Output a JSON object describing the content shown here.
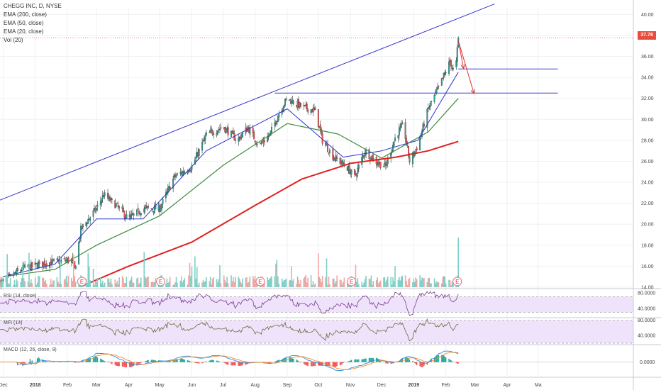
{
  "legend": {
    "symbol": "CHEGG INC, D, NYSE",
    "ema200": "EMA (200, close)",
    "ema50": "EMA (50, close)",
    "ema20": "EMA (20, close)",
    "vol": "Vol (20)"
  },
  "price_tag": "37.78",
  "earnings_marker": "E",
  "panels": {
    "rsi": "RSI (14, close)",
    "mfi": "MFI (14)",
    "macd": "MACD (12, 26, close, 9)"
  },
  "colors": {
    "up": "#26a69a",
    "down": "#ef5350",
    "ema200": "#e02020",
    "ema50": "#3c8a3c",
    "ema20": "#2832c8",
    "trendline": "#3a3ad0",
    "arrow": "#e03030",
    "rsi": "#7b3c8f",
    "mfi": "#6b6b3a",
    "macd": "#2a8fd8",
    "signal": "#f08a30",
    "band_fill": "#efe3fb"
  },
  "chart_data": [
    {
      "type": "candlestick",
      "title": "CHEGG INC, D, NYSE",
      "x_ticks": [
        "Dec",
        "2018",
        "Feb",
        "Mar",
        "Apr",
        "May",
        "Jun",
        "Jul",
        "Aug",
        "Sep",
        "Oct",
        "Nov",
        "Dec",
        "2019",
        "Feb",
        "Mar",
        "Apr",
        "Ma"
      ],
      "y_ticks": [
        "40.00",
        "38.00",
        "36.00",
        "34.00",
        "32.00",
        "30.00",
        "28.00",
        "26.00",
        "24.00",
        "22.00",
        "20.00",
        "18.00",
        "16.00",
        "14.00"
      ],
      "ylim": [
        14,
        40.7
      ],
      "last_price": 37.78,
      "close_path": [
        {
          "x": "2017-12-01",
          "y": 14.5
        },
        {
          "x": "2017-12-20",
          "y": 15.8
        },
        {
          "x": "2018-01-10",
          "y": 16.3
        },
        {
          "x": "2018-02-05",
          "y": 16.6
        },
        {
          "x": "2018-02-08",
          "y": 15.7
        },
        {
          "x": "2018-02-14",
          "y": 19.5
        },
        {
          "x": "2018-03-01",
          "y": 21.5
        },
        {
          "x": "2018-03-08",
          "y": 22.8
        },
        {
          "x": "2018-03-20",
          "y": 21.8
        },
        {
          "x": "2018-04-01",
          "y": 20.5
        },
        {
          "x": "2018-04-15",
          "y": 21.5
        },
        {
          "x": "2018-05-01",
          "y": 21.5
        },
        {
          "x": "2018-05-15",
          "y": 24.5
        },
        {
          "x": "2018-06-01",
          "y": 25.5
        },
        {
          "x": "2018-06-15",
          "y": 28.5
        },
        {
          "x": "2018-07-01",
          "y": 29.3
        },
        {
          "x": "2018-07-15",
          "y": 28.0
        },
        {
          "x": "2018-07-25",
          "y": 29.2
        },
        {
          "x": "2018-08-05",
          "y": 27.5
        },
        {
          "x": "2018-08-15",
          "y": 28.5
        },
        {
          "x": "2018-08-25",
          "y": 30.8
        },
        {
          "x": "2018-09-01",
          "y": 32.0
        },
        {
          "x": "2018-09-15",
          "y": 31.2
        },
        {
          "x": "2018-09-28",
          "y": 30.8
        },
        {
          "x": "2018-10-05",
          "y": 28.0
        },
        {
          "x": "2018-10-15",
          "y": 26.5
        },
        {
          "x": "2018-10-28",
          "y": 25.5
        },
        {
          "x": "2018-11-05",
          "y": 24.5
        },
        {
          "x": "2018-11-15",
          "y": 27.0
        },
        {
          "x": "2018-11-25",
          "y": 26.0
        },
        {
          "x": "2018-12-05",
          "y": 25.5
        },
        {
          "x": "2018-12-15",
          "y": 28.5
        },
        {
          "x": "2018-12-22",
          "y": 29.5
        },
        {
          "x": "2018-12-28",
          "y": 26.0
        },
        {
          "x": "2019-01-05",
          "y": 27.5
        },
        {
          "x": "2019-01-15",
          "y": 31.0
        },
        {
          "x": "2019-01-25",
          "y": 33.0
        },
        {
          "x": "2019-02-05",
          "y": 35.5
        },
        {
          "x": "2019-02-10",
          "y": 34.2
        },
        {
          "x": "2019-02-13",
          "y": 37.78
        }
      ],
      "ema200": [
        {
          "x": "2018-02-15",
          "y": 14.1
        },
        {
          "x": "2018-04-01",
          "y": 16.0
        },
        {
          "x": "2018-06-01",
          "y": 18.3
        },
        {
          "x": "2018-08-01",
          "y": 21.8
        },
        {
          "x": "2018-09-15",
          "y": 24.3
        },
        {
          "x": "2018-11-01",
          "y": 25.8
        },
        {
          "x": "2018-12-15",
          "y": 26.4
        },
        {
          "x": "2019-01-15",
          "y": 27.0
        },
        {
          "x": "2019-02-13",
          "y": 27.9
        }
      ],
      "ema50": [
        {
          "x": "2017-12-01",
          "y": 15.0
        },
        {
          "x": "2018-01-20",
          "y": 15.7
        },
        {
          "x": "2018-03-01",
          "y": 18.0
        },
        {
          "x": "2018-05-01",
          "y": 20.8
        },
        {
          "x": "2018-07-01",
          "y": 25.6
        },
        {
          "x": "2018-09-01",
          "y": 29.6
        },
        {
          "x": "2018-10-20",
          "y": 28.6
        },
        {
          "x": "2018-12-01",
          "y": 26.3
        },
        {
          "x": "2019-01-15",
          "y": 28.8
        },
        {
          "x": "2019-02-13",
          "y": 32.0
        }
      ],
      "ema20": [
        {
          "x": "2017-12-01",
          "y": 15.0
        },
        {
          "x": "2018-01-20",
          "y": 16.2
        },
        {
          "x": "2018-03-01",
          "y": 20.5
        },
        {
          "x": "2018-04-15",
          "y": 20.5
        },
        {
          "x": "2018-06-15",
          "y": 27.0
        },
        {
          "x": "2018-09-01",
          "y": 31.0
        },
        {
          "x": "2018-10-25",
          "y": 26.4
        },
        {
          "x": "2018-12-01",
          "y": 27.0
        },
        {
          "x": "2019-01-05",
          "y": 28.0
        },
        {
          "x": "2019-02-13",
          "y": 34.5
        }
      ],
      "trendline": [
        {
          "x": "2017-11-28",
          "y": 22.3
        },
        {
          "x": "2019-03-20",
          "y": 41.0
        }
      ],
      "support_lines": [
        {
          "from": "2018-08-20",
          "to": "2019-05-20",
          "y": 32.5
        },
        {
          "from": "2019-02-13",
          "to": "2019-05-20",
          "y": 34.8
        }
      ],
      "projection_arrows": [
        {
          "from": {
            "x": "2019-02-13",
            "y": 37.5
          },
          "to": {
            "x": "2019-02-18",
            "y": 34.9
          }
        },
        {
          "from": {
            "x": "2019-02-13",
            "y": 37.5
          },
          "to": {
            "x": "2019-02-28",
            "y": 32.5
          }
        }
      ],
      "earnings_dates": [
        "2018-02-15",
        "2018-05-02",
        "2018-08-06",
        "2018-11-02",
        "2019-02-12"
      ]
    },
    {
      "type": "line",
      "title": "RSI (14, close)",
      "y_ticks": [
        "80.0000",
        "40.0000"
      ],
      "ylim": [
        20,
        85
      ],
      "band": [
        30,
        70
      ]
    },
    {
      "type": "line",
      "title": "MFI (14)",
      "y_ticks": [
        "80.0000",
        "40.0000"
      ],
      "ylim": [
        20,
        85
      ],
      "band": [
        20,
        80
      ]
    },
    {
      "type": "line",
      "title": "MACD (12, 26, close, 9)",
      "y_ticks": [
        "0.0000"
      ],
      "series": [
        {
          "values": []
        },
        {
          "values": []
        }
      ]
    }
  ]
}
